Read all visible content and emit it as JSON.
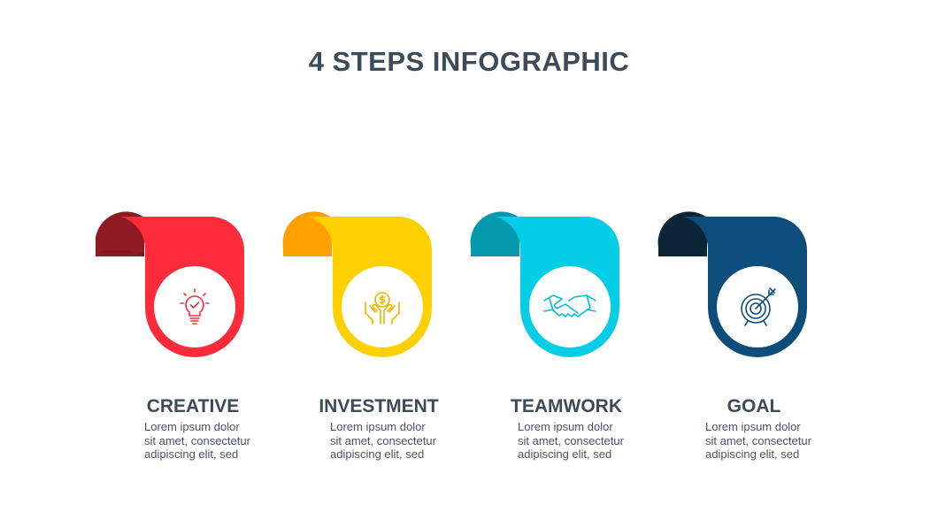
{
  "title": "4 STEPS INFOGRAPHIC",
  "steps": [
    {
      "title": "CREATIVE",
      "desc": [
        "Lorem ipsum dolor",
        "sit amet, consectetur",
        "adipiscing elit, sed"
      ],
      "icon": "lightbulb-check-icon",
      "color": "#fe2b3a",
      "fold": "#8e1a24"
    },
    {
      "title": "INVESTMENT",
      "desc": [
        "Lorem ipsum dolor",
        "sit amet, consectetur",
        "adipiscing elit, sed"
      ],
      "icon": "hands-coin-icon",
      "color": "#ffd000",
      "fold": "#ffa000"
    },
    {
      "title": "TEAMWORK",
      "desc": [
        "Lorem ipsum dolor",
        "sit amet, consectetur",
        "adipiscing elit, sed"
      ],
      "icon": "handshake-icon",
      "color": "#05cde6",
      "fold": "#0599ad"
    },
    {
      "title": "GOAL",
      "desc": [
        "Lorem ipsum dolor",
        "sit amet, consectetur",
        "adipiscing elit, sed"
      ],
      "icon": "target-arrow-icon",
      "color": "#0d4d7c",
      "fold": "#0b2436"
    }
  ]
}
